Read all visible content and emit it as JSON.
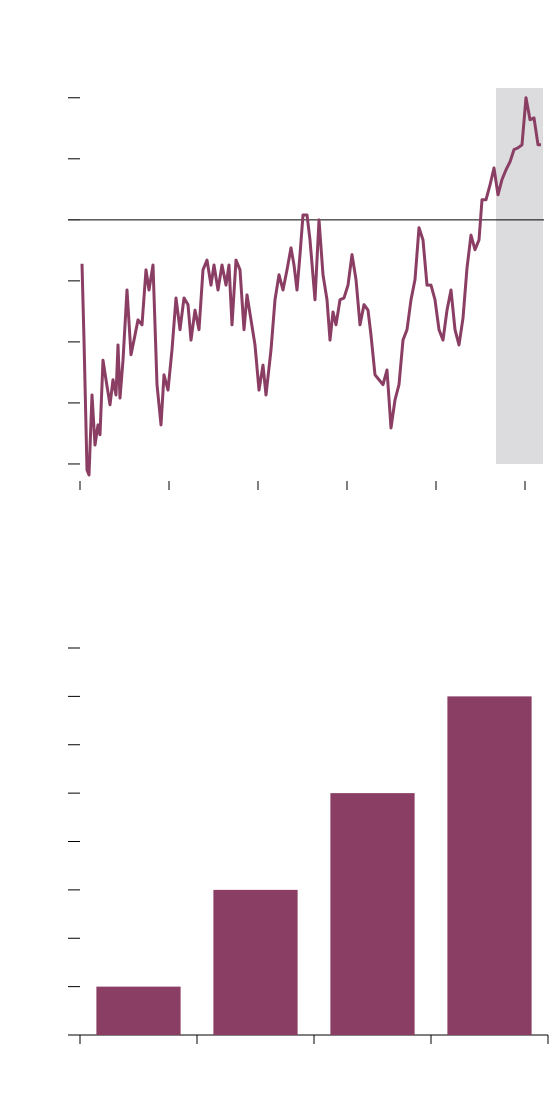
{
  "chart_data": [
    {
      "type": "line",
      "x": [
        2,
        4,
        7,
        9,
        12,
        15,
        18,
        20,
        23,
        26,
        30,
        33,
        36,
        38,
        40,
        43,
        47,
        51,
        54,
        58,
        62,
        66,
        69,
        73,
        77,
        81,
        84,
        88,
        92,
        96,
        100,
        104,
        108,
        111,
        115,
        119,
        123,
        127,
        131,
        134,
        138,
        142,
        146,
        149,
        152,
        156,
        160,
        164,
        167,
        171,
        175,
        179,
        183,
        186,
        191,
        195,
        199,
        203,
        207,
        211,
        214,
        217,
        220,
        223,
        227,
        230,
        235,
        239,
        243,
        247,
        250,
        253,
        256,
        260,
        264,
        268,
        272,
        276,
        280,
        284,
        288,
        291,
        295,
        299,
        303,
        307,
        311,
        315,
        319,
        323,
        327,
        331,
        335,
        339,
        343,
        347,
        351,
        355,
        359,
        363,
        367,
        371,
        375,
        379,
        383,
        387,
        391,
        395,
        399,
        402,
        406,
        410,
        414,
        418,
        422,
        426,
        430,
        434,
        438,
        442,
        446,
        450,
        454,
        458,
        461
      ],
      "series": [
        {
          "color": "#8b3e63",
          "values": [
            -0.72,
            -1.97,
            -4.1,
            -4.18,
            -2.87,
            -3.69,
            -3.36,
            -3.52,
            -2.3,
            -2.62,
            -3.03,
            -2.62,
            -2.87,
            -2.05,
            -2.92,
            -2.3,
            -1.15,
            -2.21,
            -1.97,
            -1.64,
            -1.72,
            -0.82,
            -1.15,
            -0.74,
            -2.7,
            -3.36,
            -2.54,
            -2.79,
            -2.13,
            -1.28,
            -1.8,
            -1.28,
            -1.39,
            -1.97,
            -1.48,
            -1.8,
            -0.82,
            -0.66,
            -1.07,
            -0.74,
            -1.15,
            -0.74,
            -1.07,
            -0.74,
            -1.72,
            -0.66,
            -0.82,
            -1.8,
            -1.23,
            -1.64,
            -2.05,
            -2.79,
            -2.38,
            -2.87,
            -2.13,
            -1.31,
            -0.9,
            -1.15,
            -0.82,
            -0.46,
            -0.74,
            -1.15,
            -0.57,
            0.08,
            0.08,
            -0.33,
            -1.31,
            0,
            -0.9,
            -1.31,
            -1.97,
            -1.51,
            -1.72,
            -1.31,
            -1.28,
            -1.07,
            -0.57,
            -0.98,
            -1.72,
            -1.39,
            -1.48,
            -1.89,
            -2.54,
            -2.62,
            -2.7,
            -2.46,
            -3.41,
            -2.95,
            -2.7,
            -1.97,
            -1.8,
            -1.31,
            -0.98,
            -0.13,
            -0.33,
            -1.07,
            -1.07,
            -1.31,
            -1.8,
            -1.97,
            -1.48,
            -1.15,
            -1.8,
            -2.05,
            -1.61,
            -0.79,
            -0.25,
            -0.49,
            -0.33,
            0.33,
            0.33,
            0.57,
            0.85,
            0.41,
            0.66,
            0.82,
            0.95,
            1.15,
            1.18,
            1.23,
            2.0,
            1.64,
            1.67,
            1.23,
            1.23
          ]
        }
      ],
      "xlim": [
        -12,
        464
      ],
      "ylim": [
        -4.23,
        2.16
      ],
      "xticks": [
        0,
        89,
        178,
        267,
        356,
        445
      ],
      "yticks": [
        -4,
        -3,
        -2,
        -1,
        0,
        1,
        2
      ],
      "reference_line": 0,
      "highlight_range": [
        416,
        463
      ],
      "highlight_color": "#dcdcdf"
    },
    {
      "type": "bar",
      "categories": [
        null,
        null,
        null,
        null
      ],
      "values": [
        1,
        3,
        5,
        7
      ],
      "color": "#8b3e63",
      "ylim": [
        0,
        8
      ],
      "yticks": [
        0,
        1,
        2,
        3,
        4,
        5,
        6,
        7,
        8
      ]
    }
  ]
}
